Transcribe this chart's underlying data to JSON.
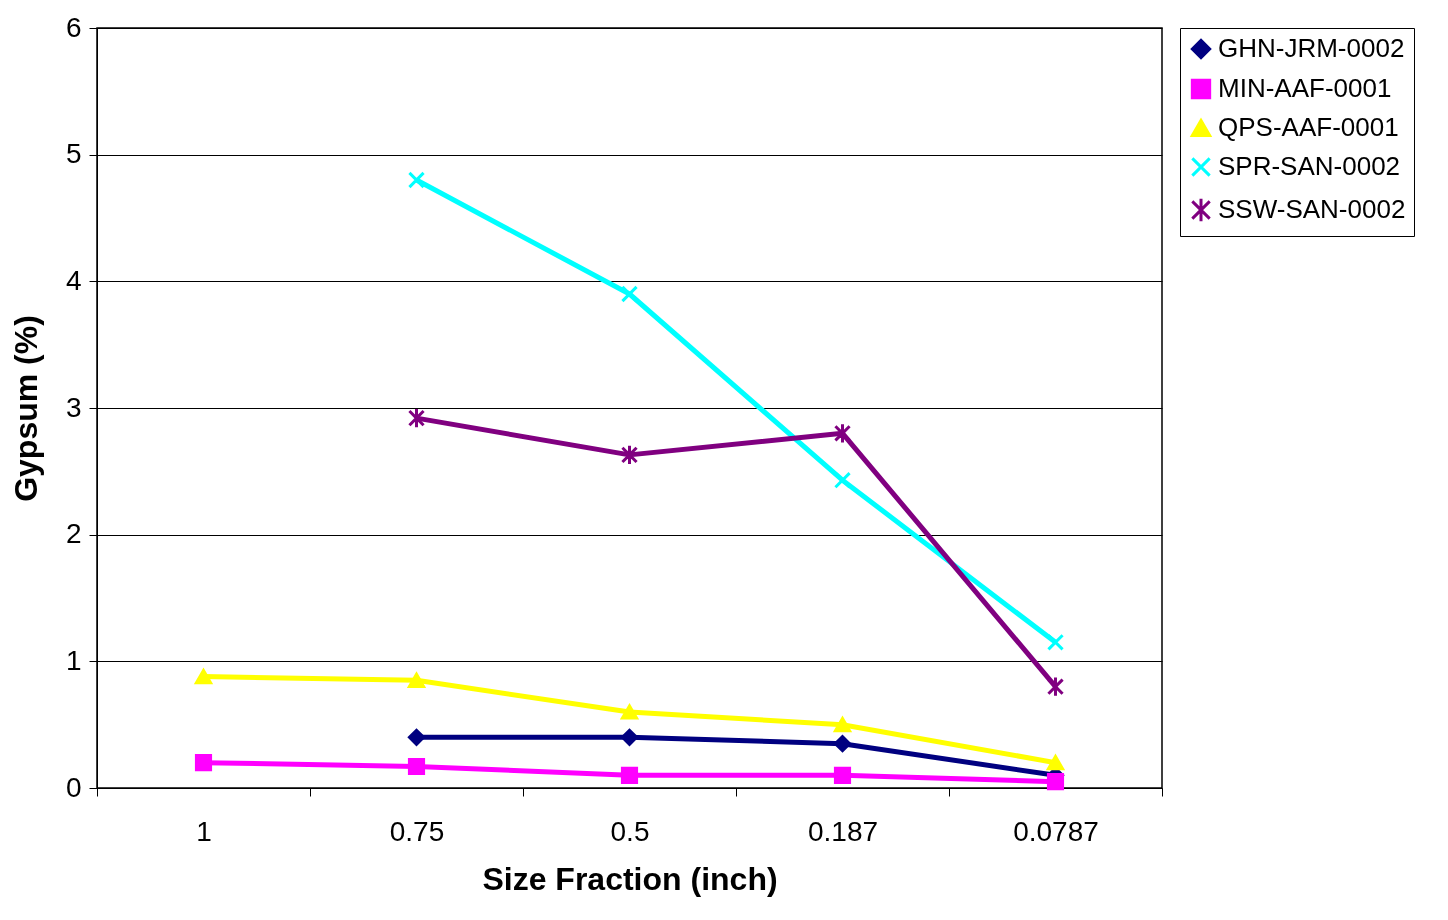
{
  "chart_data": {
    "type": "line",
    "xlabel": "Size Fraction (inch)",
    "ylabel": "Gypsum (%)",
    "categories": [
      "1",
      "0.75",
      "0.5",
      "0.187",
      "0.0787"
    ],
    "series": [
      {
        "name": "GHN-JRM-0002",
        "color": "#000080",
        "marker": "diamond",
        "values": [
          null,
          0.4,
          0.4,
          0.35,
          0.1
        ]
      },
      {
        "name": "MIN-AAF-0001",
        "color": "#ff00ff",
        "marker": "square",
        "values": [
          0.2,
          0.17,
          0.1,
          0.1,
          0.05
        ]
      },
      {
        "name": "QPS-AAF-0001",
        "color": "#ffff00",
        "marker": "triangle",
        "values": [
          0.88,
          0.85,
          0.6,
          0.5,
          0.2
        ]
      },
      {
        "name": "SPR-SAN-0002",
        "color": "#00ffff",
        "marker": "cross",
        "values": [
          null,
          4.8,
          3.9,
          2.43,
          1.15
        ]
      },
      {
        "name": "SSW-SAN-0002",
        "color": "#800080",
        "marker": "star",
        "values": [
          null,
          2.92,
          2.63,
          2.8,
          0.8
        ]
      }
    ],
    "ylim": [
      0,
      6
    ],
    "yticks": [
      0,
      1,
      2,
      3,
      4,
      5,
      6
    ],
    "grid": "y",
    "legend": "right"
  }
}
